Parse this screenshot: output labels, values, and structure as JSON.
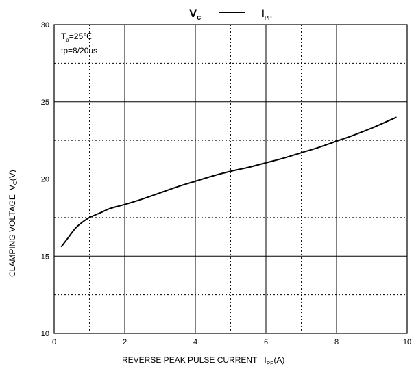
{
  "chart_data": {
    "type": "line",
    "title_left": "V",
    "title_left_sub": "C",
    "title_right": "I",
    "title_right_sub": "PP",
    "xlabel": "REVERSE PEAK PULSE CURRENT",
    "xlabel_symbol": "I",
    "xlabel_symbol_sub": "PP",
    "xlabel_unit": "(A)",
    "ylabel": "CLAMPING VOLTAGE",
    "ylabel_symbol": "V",
    "ylabel_symbol_sub": "C",
    "ylabel_unit": "(V)",
    "xlim": [
      0,
      10
    ],
    "ylim": [
      10,
      30
    ],
    "x_ticks": [
      "0",
      "2",
      "4",
      "6",
      "8",
      "10"
    ],
    "y_ticks": [
      "10",
      "15",
      "20",
      "25",
      "30"
    ],
    "grid": true,
    "annotations": {
      "temp_prefix": "T",
      "temp_sub": "a",
      "temp_value": "=25℃",
      "pulse": "tp=8/20us"
    },
    "series": [
      {
        "x": [
          0.2,
          0.4,
          0.6,
          0.8,
          1.0,
          1.3,
          1.6,
          2.0,
          2.5,
          3.0,
          3.5,
          4.0,
          4.5,
          5.0,
          5.5,
          6.0,
          6.5,
          7.0,
          7.5,
          8.0,
          8.5,
          9.0,
          9.5,
          9.7
        ],
        "y": [
          15.6,
          16.2,
          16.8,
          17.2,
          17.5,
          17.8,
          18.1,
          18.35,
          18.7,
          19.1,
          19.5,
          19.85,
          20.2,
          20.5,
          20.75,
          21.05,
          21.35,
          21.7,
          22.05,
          22.45,
          22.85,
          23.3,
          23.8,
          24.0
        ]
      }
    ]
  }
}
